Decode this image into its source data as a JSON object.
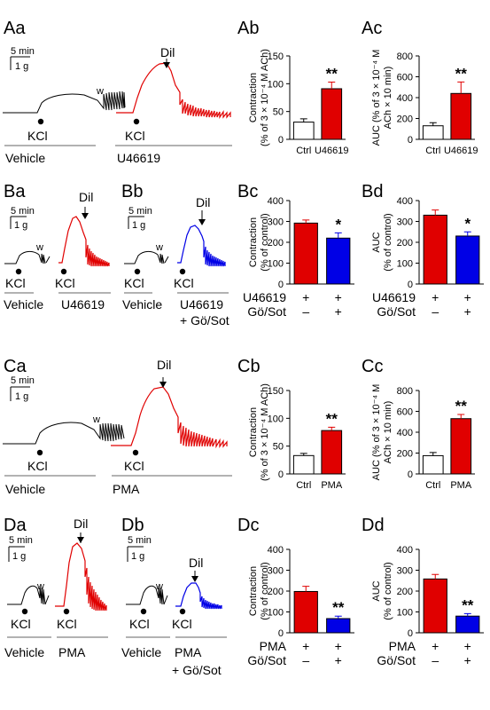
{
  "panel_labels": {
    "Aa": "Aa",
    "Ab": "Ab",
    "Ac": "Ac",
    "Ba": "Ba",
    "Bb": "Bb",
    "Bc": "Bc",
    "Bd": "Bd",
    "Ca": "Ca",
    "Cb": "Cb",
    "Cc": "Cc",
    "Da": "Da",
    "Db": "Db",
    "Dc": "Dc",
    "Dd": "Dd"
  },
  "traces": {
    "scale_time": "5 min",
    "scale_force": "1 g",
    "kcl": "KCl",
    "w": "w",
    "dil": "Dil",
    "vehicle": "Vehicle",
    "u46619": "U46619",
    "pma": "PMA",
    "plus_go_sot": "+ Gö/Sot",
    "colors": {
      "control": "#000000",
      "agonist": "#e00000",
      "inhibitor": "#0000e6"
    }
  },
  "chart_data": [
    {
      "id": "Ab",
      "type": "bar",
      "categories": [
        "Ctrl",
        "U46619"
      ],
      "values": [
        31,
        91
      ],
      "errors": [
        6,
        12
      ],
      "colors": [
        "#ffffff",
        "#e00000"
      ],
      "ylim": [
        0,
        150
      ],
      "yticks": [
        0,
        50,
        100,
        150
      ],
      "ylabel_lines": [
        "Contraction",
        "(% of 3 × 10⁻⁴ M ACh)"
      ],
      "significance": [
        "",
        "**"
      ]
    },
    {
      "id": "Ac",
      "type": "bar",
      "categories": [
        "Ctrl",
        "U46619"
      ],
      "values": [
        130,
        440
      ],
      "errors": [
        30,
        110
      ],
      "colors": [
        "#ffffff",
        "#e00000"
      ],
      "ylim": [
        0,
        800
      ],
      "yticks": [
        0,
        200,
        400,
        600,
        800
      ],
      "ylabel_lines": [
        "AUC (% of 3 × 10⁻⁴ M",
        "ACh × 10 min)"
      ],
      "significance": [
        "",
        "**"
      ]
    },
    {
      "id": "Bc",
      "type": "bar",
      "categories": [
        "",
        ""
      ],
      "values": [
        292,
        220
      ],
      "errors": [
        15,
        25
      ],
      "colors": [
        "#e00000",
        "#0000e6"
      ],
      "ylim": [
        0,
        400
      ],
      "yticks": [
        0,
        100,
        200,
        300,
        400
      ],
      "ylabel_lines": [
        "Contraction",
        "(% of control)"
      ],
      "significance": [
        "",
        "*"
      ],
      "condition_rows": [
        {
          "label": "U46619",
          "marks": [
            "+",
            "+"
          ]
        },
        {
          "label": "Gö/Sot",
          "marks": [
            "–",
            "+"
          ]
        }
      ]
    },
    {
      "id": "Bd",
      "type": "bar",
      "categories": [
        "",
        ""
      ],
      "values": [
        330,
        230
      ],
      "errors": [
        25,
        20
      ],
      "colors": [
        "#e00000",
        "#0000e6"
      ],
      "ylim": [
        0,
        400
      ],
      "yticks": [
        0,
        100,
        200,
        300,
        400
      ],
      "ylabel_lines": [
        "AUC",
        "(% of control)"
      ],
      "significance": [
        "",
        "*"
      ],
      "condition_rows": [
        {
          "label": "U46619",
          "marks": [
            "+",
            "+"
          ]
        },
        {
          "label": "Gö/Sot",
          "marks": [
            "–",
            "+"
          ]
        }
      ]
    },
    {
      "id": "Cb",
      "type": "bar",
      "categories": [
        "Ctrl",
        "PMA"
      ],
      "values": [
        33,
        78
      ],
      "errors": [
        4,
        6
      ],
      "colors": [
        "#ffffff",
        "#e00000"
      ],
      "ylim": [
        0,
        150
      ],
      "yticks": [
        0,
        50,
        100,
        150
      ],
      "ylabel_lines": [
        "Contraction",
        "(% of 3 × 10⁻⁴ M ACh)"
      ],
      "significance": [
        "",
        "**"
      ]
    },
    {
      "id": "Cc",
      "type": "bar",
      "categories": [
        "Ctrl",
        "PMA"
      ],
      "values": [
        175,
        530
      ],
      "errors": [
        30,
        40
      ],
      "colors": [
        "#ffffff",
        "#e00000"
      ],
      "ylim": [
        0,
        800
      ],
      "yticks": [
        0,
        200,
        400,
        600,
        800
      ],
      "ylabel_lines": [
        "AUC (% of 3 × 10⁻⁴ M",
        "ACh × 10 min)"
      ],
      "significance": [
        "",
        "**"
      ]
    },
    {
      "id": "Dc",
      "type": "bar",
      "categories": [
        "",
        ""
      ],
      "values": [
        198,
        68
      ],
      "errors": [
        25,
        12
      ],
      "colors": [
        "#e00000",
        "#0000e6"
      ],
      "ylim": [
        0,
        400
      ],
      "yticks": [
        0,
        100,
        200,
        300,
        400
      ],
      "ylabel_lines": [
        "Contraction",
        "(% of control)"
      ],
      "significance": [
        "",
        "**"
      ],
      "condition_rows": [
        {
          "label": "PMA",
          "marks": [
            "+",
            "+"
          ]
        },
        {
          "label": "Gö/Sot",
          "marks": [
            "–",
            "+"
          ]
        }
      ]
    },
    {
      "id": "Dd",
      "type": "bar",
      "categories": [
        "",
        ""
      ],
      "values": [
        258,
        80
      ],
      "errors": [
        22,
        12
      ],
      "colors": [
        "#e00000",
        "#0000e6"
      ],
      "ylim": [
        0,
        400
      ],
      "yticks": [
        0,
        100,
        200,
        300,
        400
      ],
      "ylabel_lines": [
        "AUC",
        "(% of control)"
      ],
      "significance": [
        "",
        "**"
      ],
      "condition_rows": [
        {
          "label": "PMA",
          "marks": [
            "+",
            "+"
          ]
        },
        {
          "label": "Gö/Sot",
          "marks": [
            "–",
            "+"
          ]
        }
      ]
    }
  ]
}
